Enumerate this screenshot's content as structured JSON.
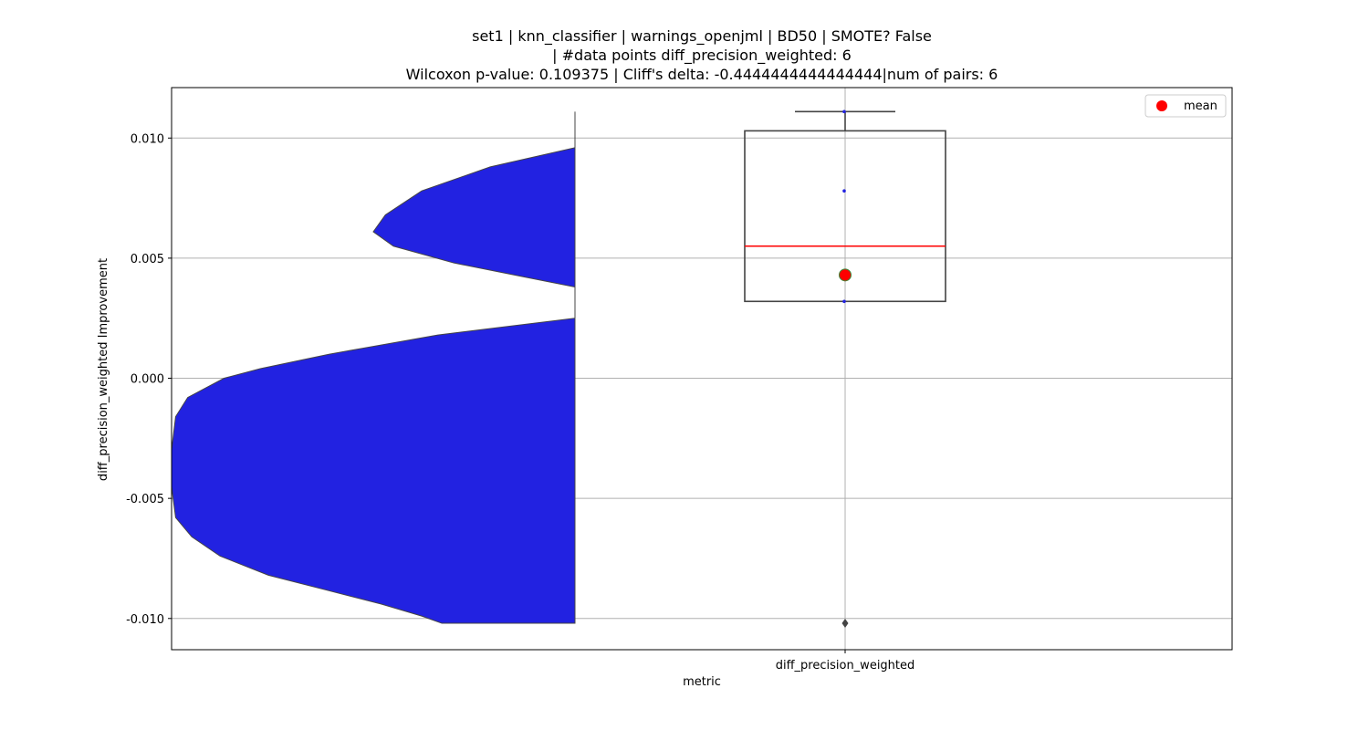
{
  "chart_data": {
    "type": "violin+box",
    "title_lines": [
      "set1 | knn_classifier | warnings_openjml | BD50 | SMOTE? False",
      "| #data points diff_precision_weighted: 6",
      "Wilcoxon p-value: 0.109375 | Cliff's delta: -0.4444444444444444|num of pairs: 6"
    ],
    "xlabel": "metric",
    "ylabel": "diff_precision_weighted Improvement",
    "categories": [
      "diff_precision_weighted"
    ],
    "ylim": [
      -0.0113,
      0.0121
    ],
    "yticks": [
      -0.01,
      -0.005,
      0.0,
      0.005,
      0.01
    ],
    "ytick_labels": [
      "-0.010",
      "-0.005",
      "0.000",
      "0.005",
      "0.010"
    ],
    "grid": true,
    "legend": {
      "placement": "top-right",
      "entries": [
        "mean"
      ]
    },
    "colors": {
      "violin_fill": "#2222e1",
      "median": "#ff0000",
      "mean_marker": "#ff0000",
      "mean_edge": "#3a8a3a",
      "box_edge": "#444444"
    },
    "violin": {
      "extent": [
        -0.0102,
        0.0111
      ],
      "edge_profile": [
        [
          0.0111,
          0.0
        ],
        [
          0.0096,
          0.0
        ],
        [
          0.0088,
          0.21
        ],
        [
          0.0078,
          0.38
        ],
        [
          0.0068,
          0.47
        ],
        [
          0.0061,
          0.5
        ],
        [
          0.0055,
          0.45
        ],
        [
          0.0048,
          0.3
        ],
        [
          0.0042,
          0.12
        ],
        [
          0.0038,
          0.0
        ],
        [
          0.0025,
          0.0
        ],
        [
          0.0018,
          0.34
        ],
        [
          0.001,
          0.61
        ],
        [
          0.0004,
          0.78
        ],
        [
          0.0,
          0.87
        ],
        [
          -0.0008,
          0.96
        ],
        [
          -0.0016,
          0.99
        ],
        [
          -0.003,
          1.0
        ],
        [
          -0.0045,
          1.0
        ],
        [
          -0.0058,
          0.99
        ],
        [
          -0.0066,
          0.95
        ],
        [
          -0.0074,
          0.88
        ],
        [
          -0.0082,
          0.76
        ],
        [
          -0.0088,
          0.62
        ],
        [
          -0.0094,
          0.48
        ],
        [
          -0.0099,
          0.38
        ],
        [
          -0.0102,
          0.33
        ]
      ]
    },
    "box": {
      "q1": 0.0032,
      "median": 0.0055,
      "q3": 0.0103,
      "whisker_low": 0.0032,
      "whisker_high": 0.0111,
      "mean": 0.0043,
      "outliers": [
        -0.0102
      ]
    },
    "points": [
      0.0111,
      0.0078,
      0.0032
    ]
  }
}
